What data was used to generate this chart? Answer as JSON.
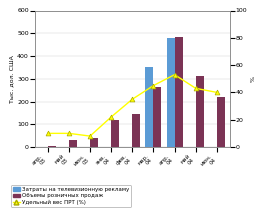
{
  "categories": [
    "апр.\n03",
    "май\n03",
    "июн.\n03",
    "янв.\n04",
    "фев.\n04",
    "мар.\n04",
    "апр.\n04",
    "май\n04",
    "июн.\n04"
  ],
  "tv_ad": [
    0,
    0,
    0,
    0,
    0,
    350,
    480,
    0,
    0
  ],
  "retail_sales": [
    5,
    30,
    40,
    120,
    145,
    265,
    485,
    310,
    220
  ],
  "prt_weight": [
    10,
    10,
    8,
    22,
    35,
    45,
    53,
    43,
    40
  ],
  "bar_color_tv": "#5b9bd5",
  "bar_color_retail": "#7b3355",
  "line_color": "#ffff00",
  "line_marker_color": "#ffff00",
  "line_edge_color": "#aaaa00",
  "ylabel_left": "Тыс. дол. США",
  "ylabel_right": "%",
  "ylim_left": [
    0,
    600
  ],
  "ylim_right": [
    0,
    100
  ],
  "yticks_left": [
    0,
    100,
    200,
    300,
    400,
    500,
    600
  ],
  "yticks_right": [
    0,
    20,
    40,
    60,
    80,
    100
  ],
  "legend_tv": "Затраты на телевизионную рекламу",
  "legend_retail": "Объемы розничных продаж",
  "legend_prt": "Удельный вес ПРТ (%)",
  "bg_color": "#ffffff"
}
